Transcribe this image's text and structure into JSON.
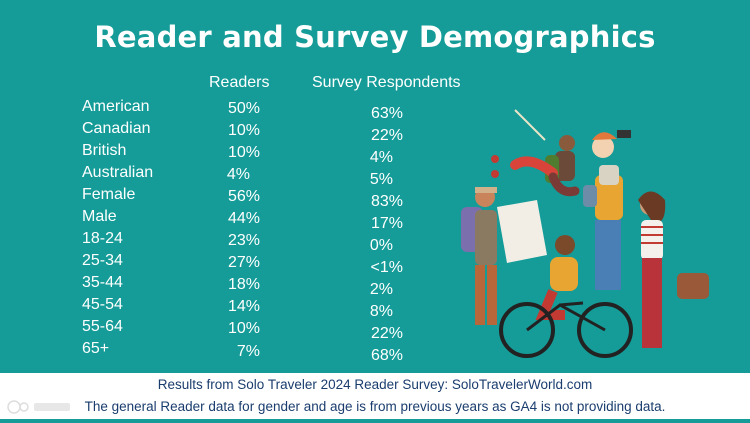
{
  "title": "Reader and Survey Demographics",
  "columns": {
    "readers": "Readers",
    "respondents": "Survey Respondents"
  },
  "rows": [
    {
      "label": "American",
      "readers": "50%",
      "respondents": "63%"
    },
    {
      "label": "Canadian",
      "readers": "10%",
      "respondents": "22%"
    },
    {
      "label": "British",
      "readers": "10%",
      "respondents": "4%"
    },
    {
      "label": "Australian",
      "readers": "4%",
      "respondents": "5%"
    },
    {
      "label": "Female",
      "readers": "56%",
      "respondents": "83%"
    },
    {
      "label": "Male",
      "readers": "44%",
      "respondents": "17%"
    },
    {
      "label": "18-24",
      "readers": "23%",
      "respondents": "0%"
    },
    {
      "label": "25-34",
      "readers": "27%",
      "respondents": "<1%"
    },
    {
      "label": "35-44",
      "readers": "18%",
      "respondents": "2%"
    },
    {
      "label": "45-54",
      "readers": "14%",
      "respondents": "8%"
    },
    {
      "label": "55-64",
      "readers": "10%",
      "respondents": "22%"
    },
    {
      "label": "65+",
      "readers": "7%",
      "respondents": "68%"
    }
  ],
  "footer": {
    "line1": "Results from Solo Traveler 2024 Reader Survey: SoloTravelerWorld.com",
    "line2": "The general Reader data for gender and age is from previous years as GA4 is not providing data."
  },
  "illustration": {
    "icon": "group-of-travelers-illustration"
  },
  "colors": {
    "background": "#159c98",
    "text": "#ffffff",
    "footer_text": "#1a3d6e"
  }
}
